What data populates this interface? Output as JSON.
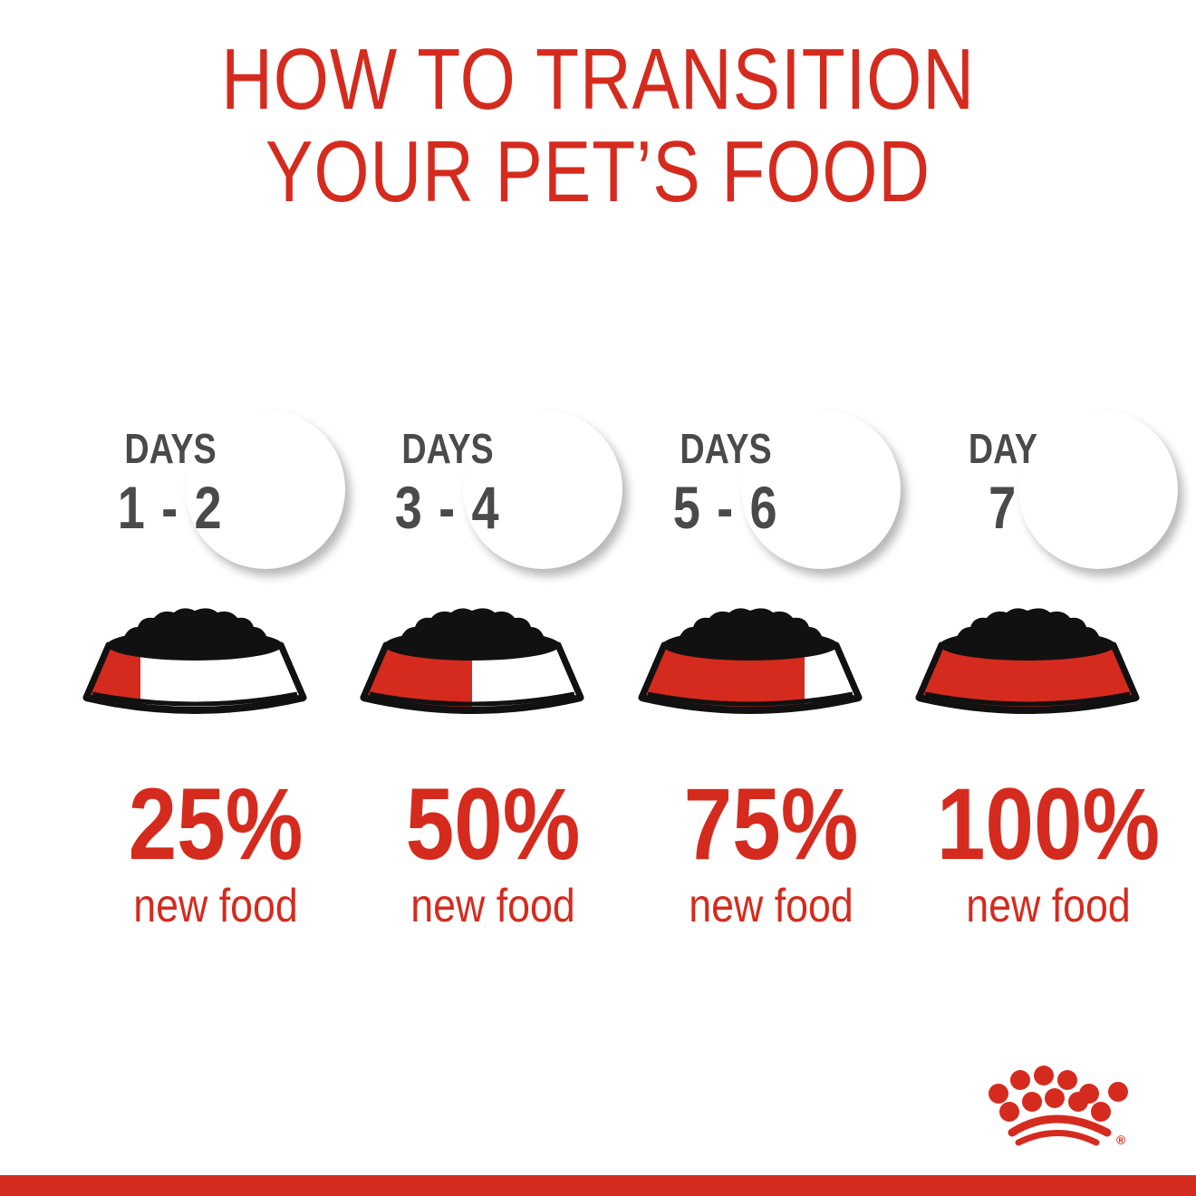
{
  "title": {
    "line1": "HOW TO TRANSITION",
    "line2": "YOUR PET’S FOOD"
  },
  "colors": {
    "brand_red": "#d52b1e",
    "days_text": "#4a4a4a",
    "food": "#111111"
  },
  "steps": [
    {
      "label": "DAYS",
      "range": "1 - 2",
      "percent": "25%",
      "caption": "new food",
      "new_food_fraction": 0.25
    },
    {
      "label": "DAYS",
      "range": "3 - 4",
      "percent": "50%",
      "caption": "new food",
      "new_food_fraction": 0.5
    },
    {
      "label": "DAYS",
      "range": "5 - 6",
      "percent": "75%",
      "caption": "new food",
      "new_food_fraction": 0.75
    },
    {
      "label": "DAY",
      "range": "7",
      "percent": "100%",
      "caption": "new food",
      "new_food_fraction": 1.0
    }
  ],
  "logo": {
    "name": "crown-logo",
    "mark": "®"
  }
}
